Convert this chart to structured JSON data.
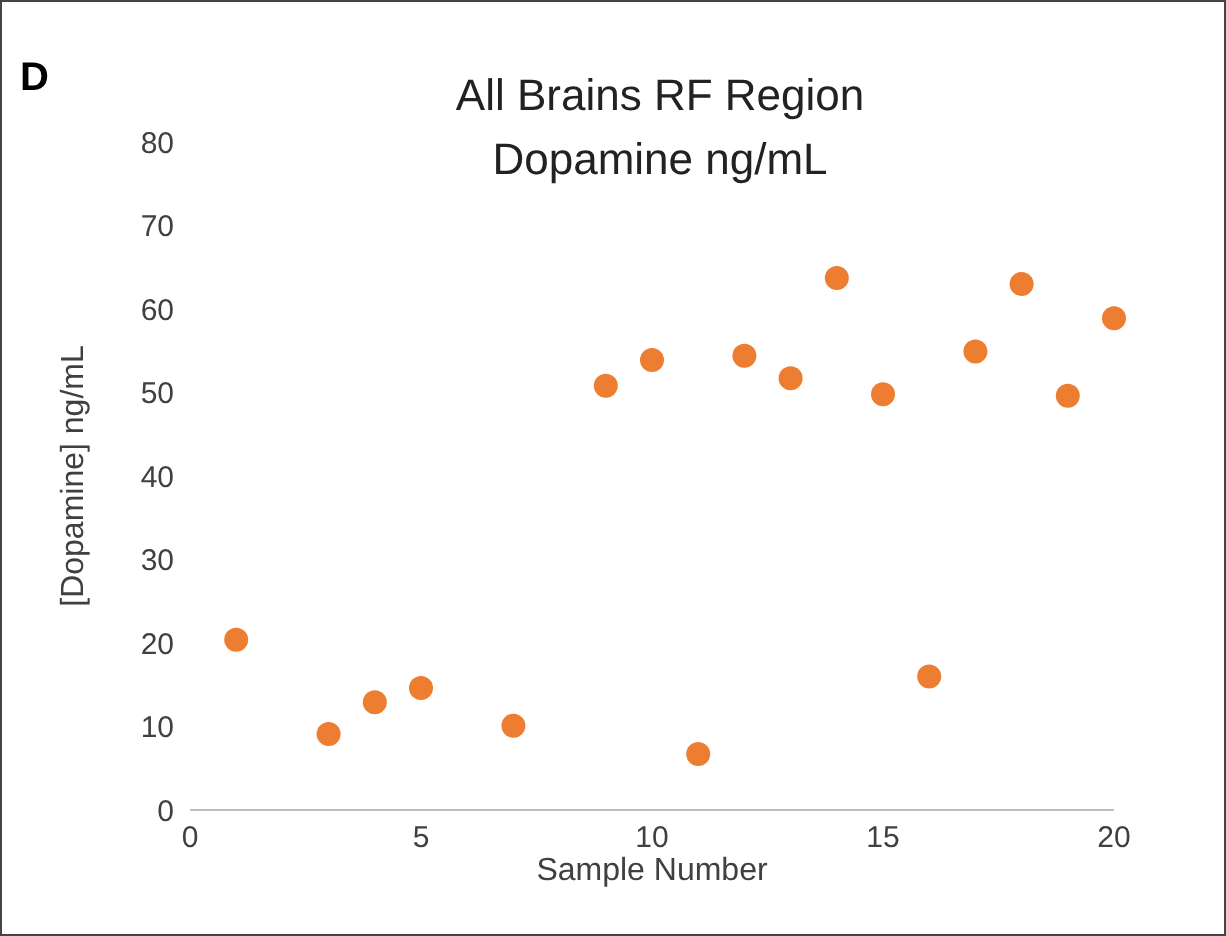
{
  "chart_data": {
    "type": "scatter",
    "title": "All Brains RF Region Dopamine ng/mL",
    "xlabel": "Sample Number",
    "ylabel": "[Dopamine] ng/mL",
    "annotations": [
      "D"
    ],
    "x": [
      1,
      3,
      4,
      5,
      7,
      9,
      10,
      11,
      12,
      13,
      14,
      15,
      16,
      17,
      18,
      19,
      20
    ],
    "series": [
      {
        "color": "#ed7d31",
        "values": [
          20.4,
          9.1,
          12.9,
          14.6,
          10.1,
          50.8,
          53.9,
          6.7,
          54.4,
          51.7,
          63.7,
          49.8,
          16.0,
          54.9,
          63.0,
          49.6,
          58.9
        ]
      }
    ],
    "xlim": [
      0,
      20
    ],
    "xticks": [
      0,
      5,
      10,
      15,
      20
    ],
    "ylim": [
      0,
      80
    ],
    "yticks": [
      0,
      10,
      20,
      30,
      40,
      50,
      60,
      70,
      80
    ],
    "grid": false,
    "legend": false,
    "marker": "circle"
  }
}
